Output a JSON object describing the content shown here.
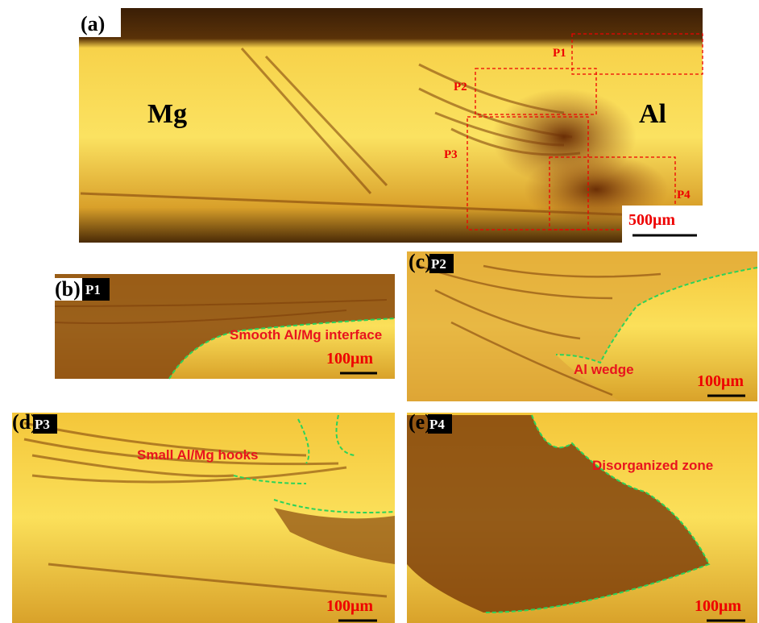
{
  "panels": [
    {
      "label": "(a)",
      "phases": [
        "Mg",
        "Al"
      ],
      "regions": [
        "P1",
        "P2",
        "P3",
        "P4"
      ],
      "scale_bar": "500μm"
    },
    {
      "label": "(b)",
      "tag": "P1",
      "annotation": "Smooth Al/Mg interface",
      "scale_bar": "100μm"
    },
    {
      "label": "(c)",
      "tag": "P2",
      "annotation": "Al wedge",
      "scale_bar": "100μm"
    },
    {
      "label": "(d)",
      "tag": "P3",
      "annotation": "Small Al/Mg hooks",
      "scale_bar": "100μm"
    },
    {
      "label": "(e)",
      "tag": "P4",
      "annotation": "Disorganized zone",
      "scale_bar": "100μm"
    }
  ]
}
